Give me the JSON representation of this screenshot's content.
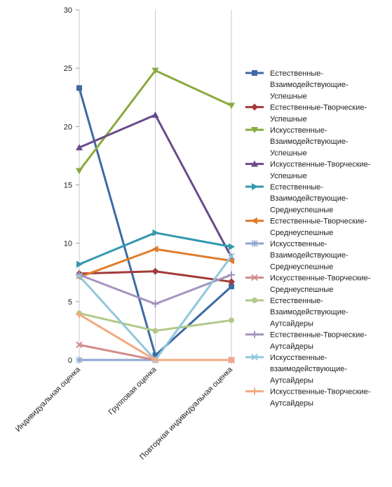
{
  "chart_data": {
    "type": "line",
    "title": "",
    "xlabel": "",
    "ylabel": "",
    "categories": [
      "Индивидуальная оценка",
      "Групповая оценка",
      "Повторная индивидуальная оценка"
    ],
    "ylim": [
      0,
      30
    ],
    "yticks": [
      0,
      5,
      10,
      15,
      20,
      25,
      30
    ],
    "grid": "vertical lines at categories",
    "legend_position": "right",
    "series": [
      {
        "name": "Естественные-Взаимодействующие-Успешные",
        "color": "#3E6AA6",
        "marker": "square",
        "values": [
          23.3,
          0.4,
          6.3
        ]
      },
      {
        "name": "Естественные-Творческие-Успешные",
        "color": "#A23B3A",
        "marker": "diamond",
        "values": [
          7.4,
          7.6,
          6.7
        ]
      },
      {
        "name": "Искусственные-Взаимодействующие-Успешные",
        "color": "#8AAA3F",
        "marker": "triangle-down",
        "values": [
          16.2,
          24.8,
          21.8
        ]
      },
      {
        "name": "Искусственные-Творческие-Успешные",
        "color": "#6A4A8C",
        "marker": "triangle-up",
        "values": [
          18.2,
          21.0,
          8.8
        ]
      },
      {
        "name": "Естественные-Взаимодействующие-Среднеуспешные",
        "color": "#3398AE",
        "marker": "triangle-right",
        "values": [
          8.2,
          10.9,
          9.7
        ]
      },
      {
        "name": "Естественные-Творческие-Среднеуспешные",
        "color": "#E07C2C",
        "marker": "triangle-left",
        "values": [
          7.1,
          9.5,
          8.5
        ]
      },
      {
        "name": "Искусственные-Взаимодействующие-Среднеуспешные",
        "color": "#8EA6CF",
        "marker": "star",
        "values": [
          0.0,
          0.0,
          0.0
        ]
      },
      {
        "name": "Искусственные-Творческие-Среднеуспешные",
        "color": "#D38C8A",
        "marker": "x",
        "values": [
          1.3,
          0.0,
          0.0
        ]
      },
      {
        "name": "Естественные-Взаимодействующие-Аутсайдеры",
        "color": "#B3C98A",
        "marker": "circle",
        "values": [
          4.0,
          2.5,
          3.4
        ]
      },
      {
        "name": "Естественные-Творческие-Аутсайдеры",
        "color": "#A493BE",
        "marker": "plus",
        "values": [
          7.3,
          4.8,
          7.3
        ]
      },
      {
        "name": "Искусственные-взаимодействующие-Аутсайдеры",
        "color": "#92C7DA",
        "marker": "x",
        "values": [
          7.2,
          0.0,
          8.9
        ]
      },
      {
        "name": "Искусственные-Творческие-Аутсайдеры",
        "color": "#F2AA80",
        "marker": "plus",
        "values": [
          3.9,
          0.0,
          0.0
        ]
      }
    ],
    "legend_lines": [
      [
        "Естественные-",
        "Взаимодействующие-",
        "Успешные"
      ],
      [
        "Естественные-Творческие-",
        "Успешные"
      ],
      [
        "Искусственные-",
        "Взаимодействующие-",
        "Успешные"
      ],
      [
        "Искусственные-Творческие-",
        "Успешные"
      ],
      [
        "Естественные-",
        "Взаимодействующие-",
        "Среднеуспешные"
      ],
      [
        "Естественные-Творческие-",
        "Среднеуспешные"
      ],
      [
        "Искусственные-",
        "Взаимодействующие-",
        "Среднеуспешные"
      ],
      [
        "Искусственные-Творческие-",
        "Среднеуспешные"
      ],
      [
        "Естественные-",
        "Взаимодействующие-",
        "Аутсайдеры"
      ],
      [
        "Естественные-Творческие-",
        "Аутсайдеры"
      ],
      [
        "Искусственные-",
        "взаимодействующие-",
        "Аутсайдеры"
      ],
      [
        "Искусственные-Творческие-",
        "Аутсайдеры"
      ]
    ]
  }
}
